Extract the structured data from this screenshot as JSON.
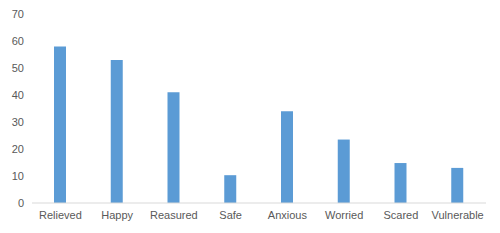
{
  "chart_data": {
    "type": "bar",
    "categories": [
      "Relieved",
      "Happy",
      "Reasured",
      "Safe",
      "Anxious",
      "Worried",
      "Scared",
      "Vulnerable"
    ],
    "values": [
      58,
      53,
      41,
      10.3,
      34,
      23.5,
      14.8,
      13
    ],
    "color": "#5b9bd5",
    "ylim": [
      0,
      70
    ],
    "yticks": [
      0,
      10,
      20,
      30,
      40,
      50,
      60,
      70
    ],
    "grid": false
  }
}
